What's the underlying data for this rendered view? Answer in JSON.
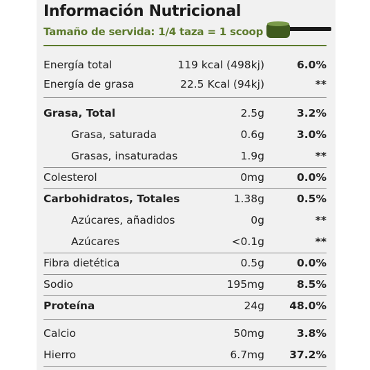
{
  "header": {
    "title": "Información Nutricional",
    "serving": "Tamaño de servida: 1/4 taza = 1 scoop"
  },
  "colors": {
    "accent": "#5c7a2c",
    "scoop": "#3f5a1e",
    "text": "#222222"
  },
  "icon": "measuring-scoop-icon",
  "rows": [
    {
      "label": "Energía total",
      "amount": "119 kcal (498kj)",
      "dv": "6.0%"
    },
    {
      "label": "Energía de grasa",
      "amount": "22.5 Kcal (94kj)",
      "dv": "**"
    },
    {
      "label": "Grasa, Total",
      "amount": "2.5g",
      "dv": "3.2%"
    },
    {
      "label": "Grasa, saturada",
      "amount": "0.6g",
      "dv": "3.0%"
    },
    {
      "label": "Grasas, insaturadas",
      "amount": "1.9g",
      "dv": "**"
    },
    {
      "label": "Colesterol",
      "amount": "0mg",
      "dv": "0.0%"
    },
    {
      "label": "Carbohidratos, Totales",
      "amount": "1.38g",
      "dv": "0.5%"
    },
    {
      "label": "Azúcares, añadidos",
      "amount": "0g",
      "dv": "**"
    },
    {
      "label": "Azúcares",
      "amount": "<0.1g",
      "dv": "**"
    },
    {
      "label": "Fibra dietética",
      "amount": "0.5g",
      "dv": "0.0%"
    },
    {
      "label": "Sodio",
      "amount": "195mg",
      "dv": "8.5%"
    },
    {
      "label": "Proteína",
      "amount": "24g",
      "dv": "48.0%"
    },
    {
      "label": "Calcio",
      "amount": "50mg",
      "dv": "3.8%"
    },
    {
      "label": "Hierro",
      "amount": "6.7mg",
      "dv": "37.2%"
    }
  ]
}
